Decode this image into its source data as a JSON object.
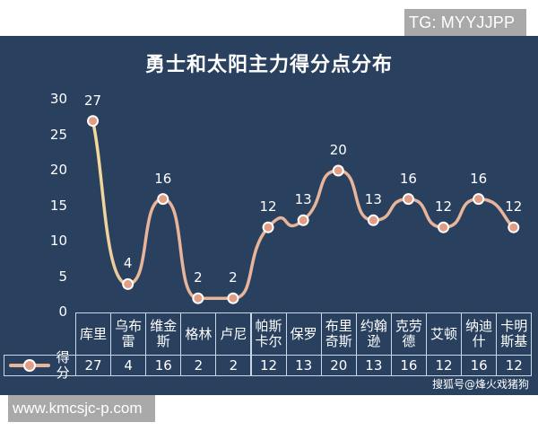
{
  "overlay": {
    "tg_label": "TG: MYYJJPP",
    "site_label": "www.kmcsjc-p.com"
  },
  "colors": {
    "panel_bg": "#29405f",
    "line": "#e8b59a",
    "line_start": "#f3dd9a",
    "marker_fill": "#e29d85",
    "marker_border": "#ffffff",
    "table_border": "#c9d8ea",
    "text": "#ffffff",
    "badge_bg": "#a9a9a9"
  },
  "chart_data": {
    "type": "line",
    "title": "勇士和太阳主力得分点分布",
    "xlabel": "",
    "ylabel": "",
    "ylim": [
      0,
      30
    ],
    "yticks": [
      0,
      5,
      10,
      15,
      20,
      25,
      30
    ],
    "grid": false,
    "smooth": true,
    "legend_position": "table-left",
    "categories": [
      "库里",
      "乌布雷",
      "维金斯",
      "格林",
      "卢尼",
      "帕斯卡尔",
      "保罗",
      "布里奇斯",
      "约翰逊",
      "克劳德",
      "艾顿",
      "纳迪什",
      "卡明斯基"
    ],
    "category_display": [
      "库里",
      "乌布\n雷",
      "维金\n斯",
      "格林",
      "卢尼",
      "帕斯\n卡尔",
      "保罗",
      "布里\n奇斯",
      "约翰\n逊",
      "克劳\n德",
      "艾顿",
      "纳迪\n什",
      "卡明\n斯基"
    ],
    "series": [
      {
        "name": "得分",
        "values": [
          27,
          4,
          16,
          2,
          2,
          12,
          13,
          20,
          13,
          16,
          12,
          16,
          12
        ]
      }
    ],
    "data_table": true
  },
  "watermark": "搜狐号@烽火戏猪狗"
}
